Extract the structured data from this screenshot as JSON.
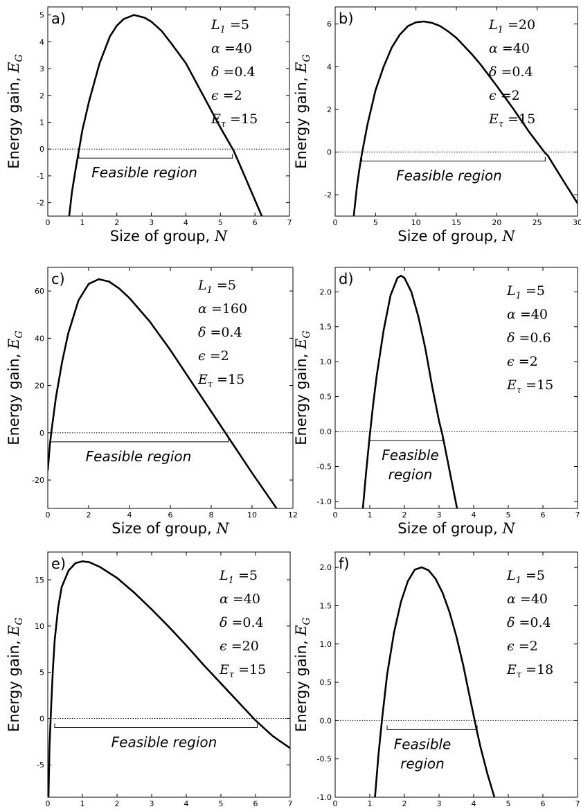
{
  "chart_data": [
    {
      "type": "line",
      "panel_label": "a)",
      "xlabel_text": "Size of group, ",
      "xlabel_var": "N",
      "ylabel_text": "Energy gain, ",
      "ylabel_var": "E",
      "ylabel_sub": "G",
      "xlim": [
        0,
        7
      ],
      "ylim": [
        -2.5,
        5.3
      ],
      "xticks": [
        "0",
        "1",
        "2",
        "3",
        "4",
        "5",
        "6",
        "7"
      ],
      "yticks": [
        "-2",
        "-1",
        "0",
        "1",
        "2",
        "3",
        "4",
        "5"
      ],
      "params": [
        {
          "base": "L",
          "sub": "1",
          "rest": " =5"
        },
        {
          "base": "α",
          "sub": "",
          "rest": " =40"
        },
        {
          "base": "δ",
          "sub": "",
          "rest": " =0.4"
        },
        {
          "base": "ϵ",
          "sub": "",
          "rest": " =2"
        },
        {
          "base": "E",
          "sub": "τ",
          "rest": " =15"
        }
      ],
      "feasible_label": [
        "Feasible region"
      ],
      "feasible_range": [
        0.9,
        5.35
      ],
      "series": [
        {
          "x": [
            0.62,
            0.7,
            0.8,
            0.9,
            1.0,
            1.2,
            1.5,
            1.8,
            2.0,
            2.2,
            2.5,
            2.8,
            3.0,
            3.3,
            3.6,
            4.0,
            4.5,
            5.0,
            5.38,
            5.6,
            5.9,
            6.2
          ],
          "y": [
            -2.5,
            -1.6,
            -0.8,
            -0.05,
            0.7,
            1.8,
            3.2,
            4.2,
            4.6,
            4.85,
            5.0,
            4.9,
            4.75,
            4.4,
            3.9,
            3.2,
            2.0,
            0.8,
            -0.05,
            -0.7,
            -1.6,
            -2.5
          ]
        }
      ]
    },
    {
      "type": "line",
      "panel_label": "b)",
      "xlabel_text": "Size of group, ",
      "xlabel_var": "N",
      "ylabel_text": "Energy gain, ",
      "ylabel_var": "E",
      "ylabel_sub": "G",
      "xlim": [
        0,
        30
      ],
      "ylim": [
        -3,
        6.8
      ],
      "xticks": [
        "0",
        "5",
        "10",
        "15",
        "20",
        "25",
        "30"
      ],
      "yticks": [
        "-2",
        "0",
        "2",
        "4",
        "6"
      ],
      "params": [
        {
          "base": "L",
          "sub": "1",
          "rest": " =20"
        },
        {
          "base": "α",
          "sub": "",
          "rest": " =40"
        },
        {
          "base": "δ",
          "sub": "",
          "rest": " =0.4"
        },
        {
          "base": "ϵ",
          "sub": "",
          "rest": " =2"
        },
        {
          "base": "E",
          "sub": "τ",
          "rest": " =15"
        }
      ],
      "feasible_label": [
        "Feasible region"
      ],
      "feasible_range": [
        3.3,
        26.0
      ],
      "series": [
        {
          "x": [
            2.3,
            2.7,
            3.0,
            3.3,
            4.0,
            5.0,
            6.0,
            7.0,
            8.0,
            9.0,
            10.0,
            11.0,
            12.0,
            13.0,
            14.0,
            15.0,
            16.0,
            17.0,
            18.0,
            20.0,
            22.0,
            24.0,
            26.0,
            26.3,
            28.0,
            30.0
          ],
          "y": [
            -3.0,
            -1.6,
            -0.8,
            -0.1,
            1.3,
            2.9,
            4.0,
            4.9,
            5.5,
            5.9,
            6.08,
            6.12,
            6.05,
            5.9,
            5.65,
            5.35,
            4.95,
            4.55,
            4.1,
            3.1,
            2.05,
            0.95,
            -0.05,
            -0.15,
            -1.2,
            -2.4
          ]
        }
      ]
    },
    {
      "type": "line",
      "panel_label": "c)",
      "xlabel_text": "Size of group, ",
      "xlabel_var": "N",
      "ylabel_text": "Energy gain, ",
      "ylabel_var": "E",
      "ylabel_sub": "G",
      "xlim": [
        0,
        12
      ],
      "ylim": [
        -32,
        70
      ],
      "xticks": [
        "0",
        "2",
        "4",
        "6",
        "8",
        "10",
        "12"
      ],
      "yticks": [
        "-20",
        "0",
        "20",
        "40",
        "60"
      ],
      "params": [
        {
          "base": "L",
          "sub": "1",
          "rest": " =5"
        },
        {
          "base": "α",
          "sub": "",
          "rest": " =160"
        },
        {
          "base": "δ",
          "sub": "",
          "rest": " =0.4"
        },
        {
          "base": "ϵ",
          "sub": "",
          "rest": " =2"
        },
        {
          "base": "E",
          "sub": "τ",
          "rest": " =15"
        }
      ],
      "feasible_label": [
        "Feasible region"
      ],
      "feasible_range": [
        0.15,
        8.85
      ],
      "series": [
        {
          "x": [
            0.0,
            0.1,
            0.2,
            0.4,
            0.7,
            1.0,
            1.5,
            2.0,
            2.5,
            3.0,
            3.5,
            4.0,
            5.0,
            6.0,
            7.0,
            8.0,
            9.0,
            10.0,
            11.2
          ],
          "y": [
            -16,
            -5,
            2,
            15,
            30,
            42,
            56,
            63,
            65,
            64,
            61,
            57,
            47,
            35,
            22,
            9,
            -4,
            -17,
            -32
          ]
        }
      ]
    },
    {
      "type": "line",
      "panel_label": "d)",
      "xlabel_text": "Size of group, ",
      "xlabel_var": "N",
      "ylabel_text": "Energy gain, ",
      "ylabel_var": "E",
      "ylabel_sub": "G",
      "xlim": [
        0,
        7
      ],
      "ylim": [
        -1.1,
        2.35
      ],
      "xticks": [
        "0",
        "1",
        "2",
        "3",
        "4",
        "5",
        "6",
        "7"
      ],
      "yticks": [
        "-1.0",
        "-0.5",
        "0.0",
        "0.5",
        "1.0",
        "1.5",
        "2.0"
      ],
      "params": [
        {
          "base": "L",
          "sub": "1",
          "rest": " =5"
        },
        {
          "base": "α",
          "sub": "",
          "rest": " =40"
        },
        {
          "base": "δ",
          "sub": "",
          "rest": " =0.6"
        },
        {
          "base": "ϵ",
          "sub": "",
          "rest": " =2"
        },
        {
          "base": "E",
          "sub": "τ",
          "rest": " =15"
        }
      ],
      "feasible_label": [
        "Feasible",
        "region"
      ],
      "feasible_range": [
        1.0,
        3.1
      ],
      "series": [
        {
          "x": [
            0.8,
            0.9,
            1.0,
            1.1,
            1.2,
            1.4,
            1.6,
            1.8,
            1.9,
            2.0,
            2.2,
            2.4,
            2.6,
            2.8,
            3.0,
            3.1,
            3.2,
            3.4,
            3.52
          ],
          "y": [
            -1.1,
            -0.55,
            -0.05,
            0.4,
            0.8,
            1.45,
            1.95,
            2.2,
            2.23,
            2.2,
            2.0,
            1.65,
            1.2,
            0.65,
            0.15,
            -0.05,
            -0.3,
            -0.8,
            -1.1
          ]
        }
      ]
    },
    {
      "type": "line",
      "panel_label": "e)",
      "xlabel_text": "Size of group, ",
      "xlabel_var": "N",
      "ylabel_text": "Energy gain, ",
      "ylabel_var": "E",
      "ylabel_sub": "G",
      "xlim": [
        0,
        7
      ],
      "ylim": [
        -8.5,
        18
      ],
      "xticks": [
        "0",
        "1",
        "2",
        "3",
        "4",
        "5",
        "6",
        "7"
      ],
      "yticks": [
        "-5",
        "0",
        "5",
        "10",
        "15"
      ],
      "params": [
        {
          "base": "L",
          "sub": "1",
          "rest": " =5"
        },
        {
          "base": "α",
          "sub": "",
          "rest": " =40"
        },
        {
          "base": "δ",
          "sub": "",
          "rest": " =0.4"
        },
        {
          "base": "ϵ",
          "sub": "",
          "rest": " =20"
        },
        {
          "base": "E",
          "sub": "τ",
          "rest": " =15"
        }
      ],
      "feasible_label": [
        "Feasible region"
      ],
      "feasible_range": [
        0.2,
        6.05
      ],
      "series": [
        {
          "x": [
            0.02,
            0.05,
            0.1,
            0.15,
            0.2,
            0.3,
            0.4,
            0.6,
            0.8,
            1.0,
            1.2,
            1.5,
            2.0,
            2.5,
            3.0,
            3.5,
            4.0,
            4.5,
            5.0,
            5.5,
            6.0,
            6.5,
            7.0
          ],
          "y": [
            -8.5,
            -3.0,
            1.5,
            5.5,
            8.5,
            12.0,
            14.2,
            16.0,
            16.8,
            17.0,
            16.9,
            16.4,
            15.2,
            13.6,
            11.8,
            9.9,
            7.9,
            5.8,
            3.8,
            1.8,
            -0.2,
            -1.9,
            -3.2
          ]
        }
      ]
    },
    {
      "type": "line",
      "panel_label": "f)",
      "xlabel_text": "Size of group, ",
      "xlabel_var": "N",
      "ylabel_text": "Energy gain, ",
      "ylabel_var": "E",
      "ylabel_sub": "G",
      "xlim": [
        0,
        7
      ],
      "ylim": [
        -1.0,
        2.2
      ],
      "xticks": [
        "0",
        "1",
        "2",
        "3",
        "4",
        "5",
        "6",
        "7"
      ],
      "yticks": [
        "-1.0",
        "-0.5",
        "0.0",
        "0.5",
        "1.0",
        "1.5",
        "2.0"
      ],
      "params": [
        {
          "base": "L",
          "sub": "1",
          "rest": " =5"
        },
        {
          "base": "α",
          "sub": "",
          "rest": " =40"
        },
        {
          "base": "δ",
          "sub": "",
          "rest": " =0.4"
        },
        {
          "base": "ϵ",
          "sub": "",
          "rest": " =2"
        },
        {
          "base": "E",
          "sub": "τ",
          "rest": " =18"
        }
      ],
      "feasible_label": [
        "Feasible",
        "region"
      ],
      "feasible_range": [
        1.5,
        4.1
      ],
      "series": [
        {
          "x": [
            1.15,
            1.25,
            1.35,
            1.5,
            1.7,
            1.9,
            2.1,
            2.3,
            2.5,
            2.7,
            2.9,
            3.1,
            3.3,
            3.5,
            3.7,
            3.9,
            4.1,
            4.2,
            4.4,
            4.6
          ],
          "y": [
            -1.0,
            -0.45,
            0.0,
            0.6,
            1.15,
            1.55,
            1.82,
            1.97,
            2.0,
            1.96,
            1.85,
            1.67,
            1.42,
            1.1,
            0.72,
            0.28,
            -0.15,
            -0.35,
            -0.7,
            -1.0
          ]
        }
      ]
    }
  ]
}
